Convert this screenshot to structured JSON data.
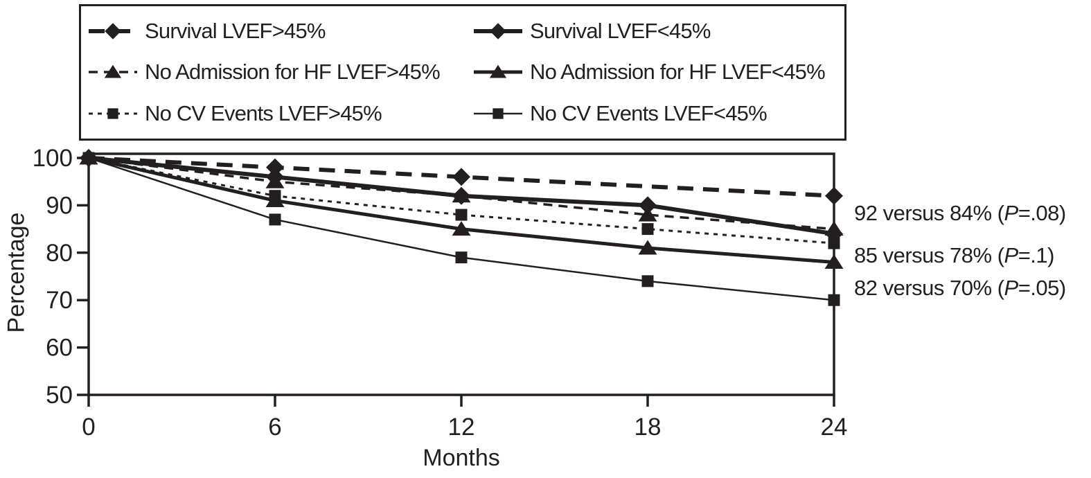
{
  "chart_data": {
    "type": "line",
    "title": "",
    "xlabel": "Months",
    "ylabel": "Percentage",
    "x": [
      0,
      6,
      12,
      18,
      24
    ],
    "xticks": [
      0,
      6,
      12,
      18,
      24
    ],
    "yticks": [
      100,
      90,
      80,
      70,
      60,
      50
    ],
    "xlim": [
      0,
      24
    ],
    "ylim": [
      50,
      100
    ],
    "grid": false,
    "legend_position": "top-boxed",
    "series": [
      {
        "name": "Survival LVEF>45%",
        "values": [
          100,
          98,
          96,
          94,
          92
        ],
        "line": "dashed",
        "thickness": "thick",
        "marker": "diamond",
        "marker_months": [
          0,
          6,
          12,
          24
        ]
      },
      {
        "name": "Survival LVEF<45%",
        "values": [
          100,
          96,
          92,
          90,
          84
        ],
        "line": "solid",
        "thickness": "thick",
        "marker": "diamond",
        "marker_months": [
          0,
          6,
          12,
          18,
          24
        ]
      },
      {
        "name": "No Admission for HF LVEF>45%",
        "values": [
          100,
          95,
          92,
          88,
          85
        ],
        "line": "dashed",
        "thickness": "thin",
        "marker": "triangle",
        "marker_months": [
          0,
          6,
          12,
          18,
          24
        ]
      },
      {
        "name": "No Admission for HF LVEF<45%",
        "values": [
          100,
          91,
          85,
          81,
          78
        ],
        "line": "solid",
        "thickness": "medium",
        "marker": "triangle",
        "marker_months": [
          0,
          6,
          12,
          18,
          24
        ]
      },
      {
        "name": "No CV Events LVEF>45%",
        "values": [
          100,
          92,
          88,
          85,
          82
        ],
        "line": "dotted",
        "thickness": "thin",
        "marker": "square",
        "marker_months": [
          0,
          6,
          12,
          18,
          24
        ]
      },
      {
        "name": "No CV Events LVEF<45%",
        "values": [
          100,
          87,
          79,
          74,
          70
        ],
        "line": "solid",
        "thickness": "thin",
        "marker": "square",
        "marker_months": [
          0,
          6,
          12,
          18,
          24
        ]
      }
    ],
    "annotations": [
      "92 versus 84% (P=.08)",
      "85 versus 78% (P=.1)",
      "82 versus 70% (P=.05)"
    ]
  },
  "annotations": [
    {
      "prefix": "92 versus 84% (",
      "italic": "P",
      "suffix": "=.08)"
    },
    {
      "prefix": "85 versus 78% (",
      "italic": "P",
      "suffix": "=.1)"
    },
    {
      "prefix": "82 versus 70% (",
      "italic": "P",
      "suffix": "=.05)"
    }
  ],
  "colors": {
    "ink": "#231f20",
    "background": "#ffffff"
  }
}
